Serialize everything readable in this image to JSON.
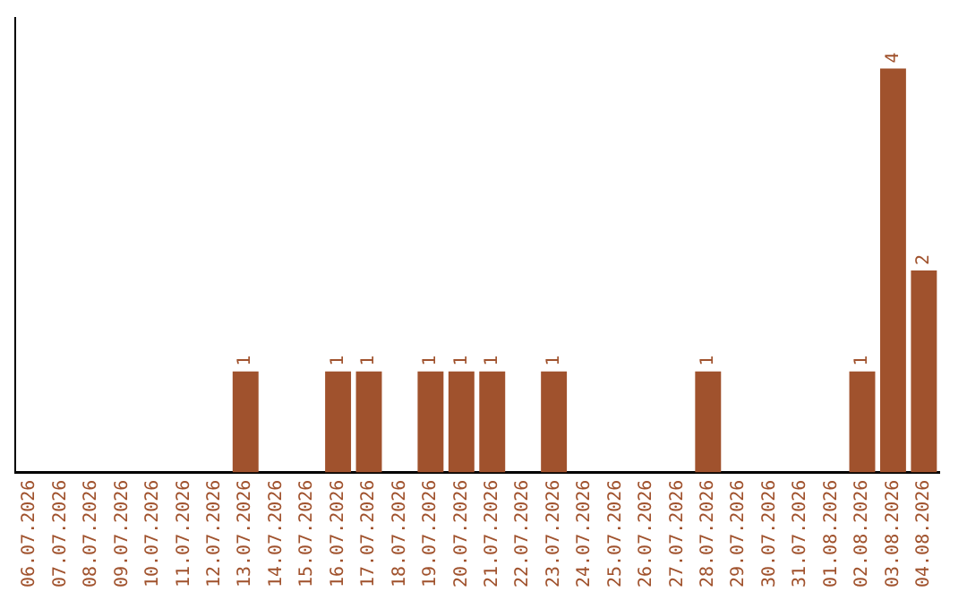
{
  "chart_data": {
    "type": "bar",
    "categories": [
      "06.07.2026",
      "07.07.2026",
      "08.07.2026",
      "09.07.2026",
      "10.07.2026",
      "11.07.2026",
      "12.07.2026",
      "13.07.2026",
      "14.07.2026",
      "15.07.2026",
      "16.07.2026",
      "17.07.2026",
      "18.07.2026",
      "19.07.2026",
      "20.07.2026",
      "21.07.2026",
      "22.07.2026",
      "23.07.2026",
      "24.07.2026",
      "25.07.2026",
      "26.07.2026",
      "27.07.2026",
      "28.07.2026",
      "29.07.2026",
      "30.07.2026",
      "31.07.2026",
      "01.08.2026",
      "02.08.2026",
      "03.08.2026",
      "04.08.2026"
    ],
    "values": [
      0,
      0,
      0,
      0,
      0,
      0,
      0,
      1,
      0,
      0,
      1,
      1,
      0,
      1,
      1,
      1,
      0,
      1,
      0,
      0,
      0,
      0,
      1,
      0,
      0,
      0,
      0,
      1,
      4,
      2
    ],
    "value_labels": [
      null,
      null,
      null,
      null,
      null,
      null,
      null,
      "1",
      null,
      null,
      "1",
      "1",
      null,
      "1",
      "1",
      "1",
      null,
      "1",
      null,
      null,
      null,
      null,
      "1",
      null,
      null,
      null,
      null,
      "1",
      "4",
      "2"
    ],
    "color": "#a0522d",
    "grid": false,
    "legend": false
  }
}
